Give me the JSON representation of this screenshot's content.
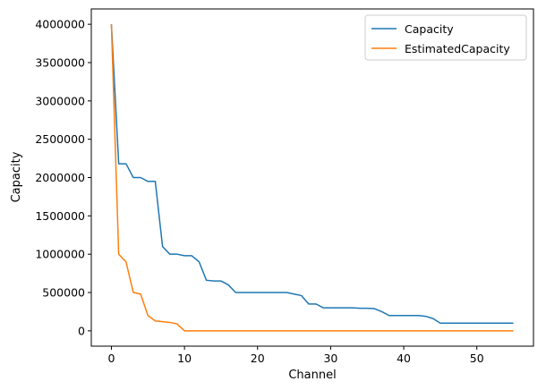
{
  "chart_data": {
    "type": "line",
    "xlabel": "Channel",
    "ylabel": "Capacity",
    "xlim": [
      -2.75,
      57.75
    ],
    "ylim": [
      -200000,
      4200000
    ],
    "xticks": [
      0,
      10,
      20,
      30,
      40,
      50
    ],
    "yticks": [
      0,
      500000,
      1000000,
      1500000,
      2000000,
      2500000,
      3000000,
      3500000,
      4000000
    ],
    "grid": false,
    "legend_position": "top-right",
    "x": [
      0,
      1,
      2,
      3,
      4,
      5,
      6,
      7,
      8,
      9,
      10,
      11,
      12,
      13,
      14,
      15,
      16,
      17,
      18,
      19,
      20,
      21,
      22,
      23,
      24,
      25,
      26,
      27,
      28,
      29,
      30,
      31,
      32,
      33,
      34,
      35,
      36,
      37,
      38,
      39,
      40,
      41,
      42,
      43,
      44,
      45,
      46,
      47,
      48,
      49,
      50,
      51,
      52,
      53,
      54,
      55
    ],
    "series": [
      {
        "name": "Capacity",
        "color": "#1f77b4",
        "values": [
          4000000,
          2180000,
          2180000,
          2000000,
          2000000,
          1950000,
          1950000,
          1100000,
          1000000,
          1000000,
          980000,
          980000,
          900000,
          660000,
          650000,
          650000,
          600000,
          500000,
          500000,
          500000,
          500000,
          500000,
          500000,
          500000,
          500000,
          480000,
          460000,
          350000,
          350000,
          300000,
          300000,
          300000,
          300000,
          300000,
          295000,
          295000,
          290000,
          250000,
          200000,
          200000,
          200000,
          200000,
          200000,
          190000,
          160000,
          100000,
          100000,
          100000,
          100000,
          100000,
          100000,
          100000,
          100000,
          100000,
          100000,
          100000
        ]
      },
      {
        "name": "EstimatedCapacity",
        "color": "#ff7f0e",
        "values": [
          4000000,
          1000000,
          900000,
          500000,
          480000,
          200000,
          130000,
          120000,
          110000,
          90000,
          0,
          0,
          0,
          0,
          0,
          0,
          0,
          0,
          0,
          0,
          0,
          0,
          0,
          0,
          0,
          0,
          0,
          0,
          0,
          0,
          0,
          0,
          0,
          0,
          0,
          0,
          0,
          0,
          0,
          0,
          0,
          0,
          0,
          0,
          0,
          0,
          0,
          0,
          0,
          0,
          0,
          0,
          0,
          0,
          0,
          0
        ]
      }
    ]
  }
}
